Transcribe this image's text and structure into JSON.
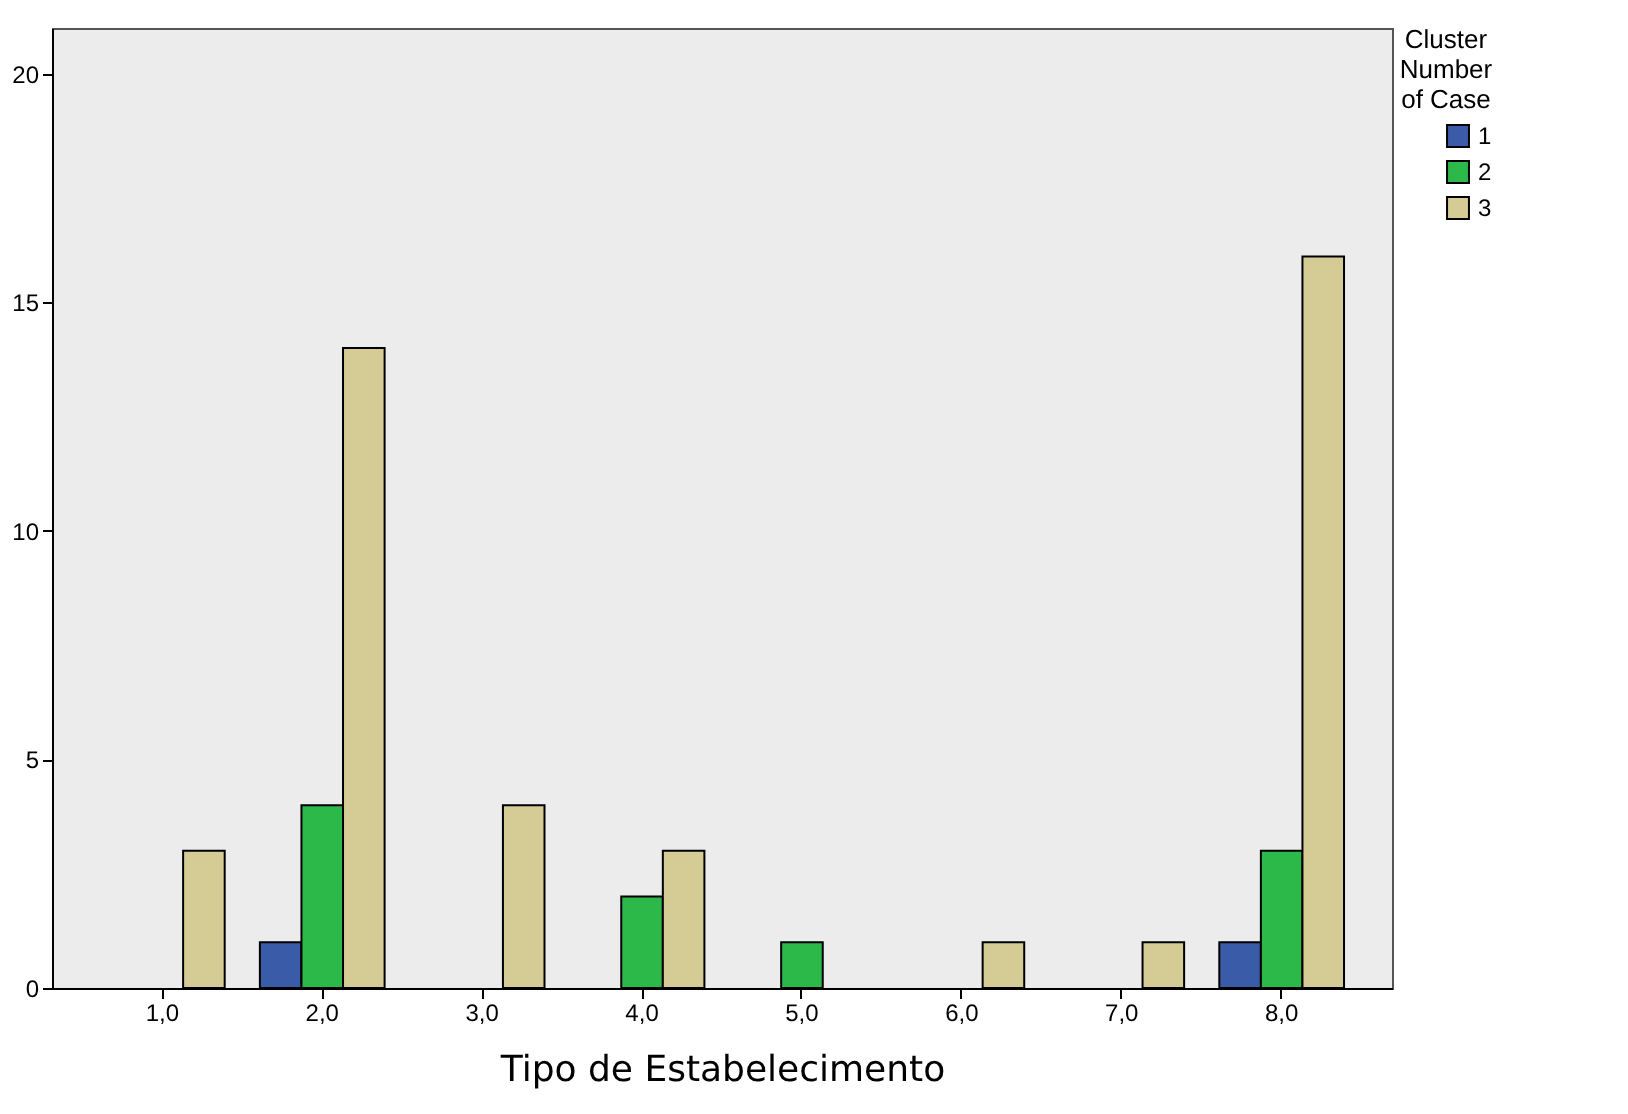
{
  "chart_data": {
    "type": "bar",
    "xlabel": "Tipo de Estabelecimento",
    "legend_title": "Cluster\nNumber\nof Case",
    "legend": "top right",
    "categories": [
      "1,0",
      "2,0",
      "3,0",
      "4,0",
      "5,0",
      "6,0",
      "7,0",
      "8,0"
    ],
    "series": [
      {
        "name": "1",
        "color": "#3a5ba7",
        "values": [
          null,
          1,
          null,
          null,
          null,
          null,
          null,
          1
        ]
      },
      {
        "name": "2",
        "color": "#2db84a",
        "values": [
          null,
          4,
          null,
          2,
          1,
          null,
          null,
          3
        ]
      },
      {
        "name": "3",
        "color": "#d4cc94",
        "values": [
          3,
          14,
          4,
          3,
          null,
          1,
          1,
          16
        ]
      }
    ],
    "ylim": [
      0,
      21
    ],
    "yticks": [
      0,
      5,
      10,
      15,
      20
    ],
    "grid": false
  }
}
